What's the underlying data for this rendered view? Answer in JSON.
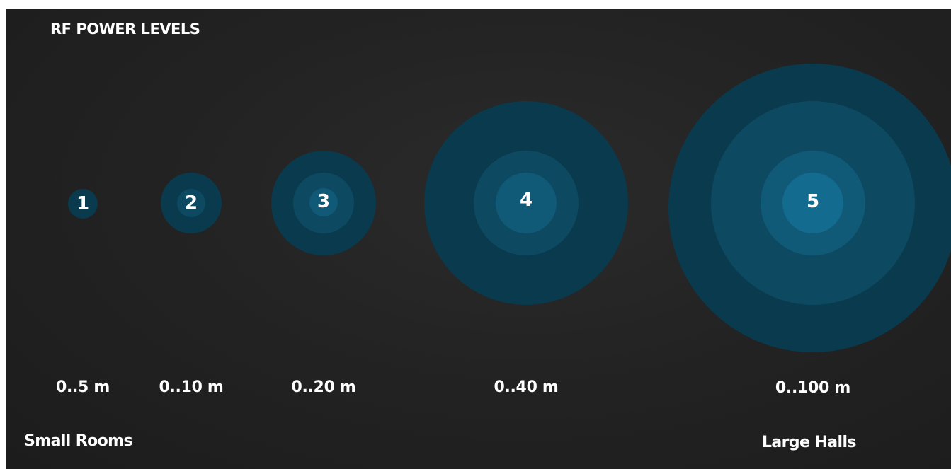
{
  "title": "RF POWER LEVELS",
  "levels": [
    {
      "label": "1",
      "range": "0..5 m"
    },
    {
      "label": "2",
      "range": "0..10 m"
    },
    {
      "label": "3",
      "range": "0..20 m"
    },
    {
      "label": "4",
      "range": "0..40 m"
    },
    {
      "label": "5",
      "range": "0..100 m"
    }
  ],
  "captions": {
    "left": "Small Rooms",
    "right": "Large Halls"
  },
  "colors": {
    "background": "#1f1f1f",
    "ring_outer": "#0a3a4d",
    "ring_second": "#0d4a62",
    "ring_third": "#105a78",
    "ring_inner": "#136b8f",
    "text": "#ffffff"
  }
}
